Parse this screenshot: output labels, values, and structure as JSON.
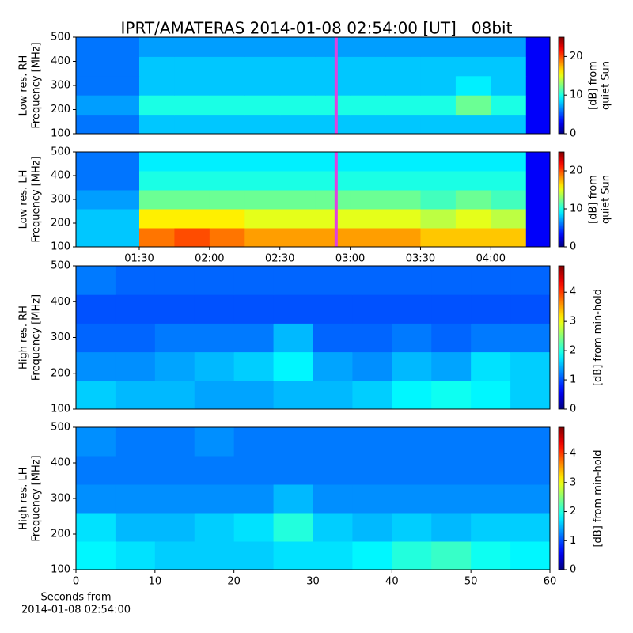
{
  "title": "IPRT/AMATERAS 2014-01-08 02:54:00 [UT]   08bit",
  "chart_data": [
    {
      "type": "heatmap",
      "colormap": "jet",
      "ylabel": [
        "Low res. RH",
        "Frequency [MHz]"
      ],
      "xlim": [
        1.05,
        4.42
      ],
      "ylim": [
        100,
        500
      ],
      "yticks": [
        100,
        200,
        300,
        400,
        500
      ],
      "x_bins": [
        1.05,
        1.5,
        1.75,
        2,
        2.25,
        2.5,
        2.75,
        3,
        3.25,
        3.5,
        3.75,
        4,
        4.25,
        4.42
      ],
      "y_bins": [
        100,
        180,
        260,
        340,
        420,
        500
      ],
      "z": [
        [
          6,
          8,
          8,
          8,
          8,
          8,
          8,
          8,
          8,
          8,
          8,
          8,
          3
        ],
        [
          7,
          10,
          10,
          10,
          10,
          10,
          10,
          10,
          10,
          10,
          12,
          10,
          3
        ],
        [
          6,
          8,
          8,
          8,
          8,
          8,
          8,
          8,
          8,
          8,
          9,
          8,
          3
        ],
        [
          6,
          8,
          8,
          8,
          8,
          8,
          8,
          8,
          8,
          8,
          8,
          8,
          3
        ],
        [
          6,
          7,
          7,
          7,
          7,
          7,
          7,
          7,
          7,
          7,
          7,
          7,
          3
        ]
      ],
      "marker_x": 2.9,
      "marker_color": "#e040e0",
      "colorbar": {
        "label": [
          "[dB] from",
          "quiet Sun"
        ],
        "lim": [
          0,
          25
        ],
        "ticks": [
          0,
          10,
          20
        ]
      }
    },
    {
      "type": "heatmap",
      "colormap": "jet",
      "ylabel": [
        "Low res. LH",
        "Frequency [MHz]"
      ],
      "xlim": [
        1.05,
        4.42
      ],
      "ylim": [
        100,
        500
      ],
      "yticks": [
        100,
        200,
        300,
        400,
        500
      ],
      "xticks": [
        {
          "value": 1.5,
          "label": "01:30"
        },
        {
          "value": 2,
          "label": "02:00"
        },
        {
          "value": 2.5,
          "label": "02:30"
        },
        {
          "value": 3,
          "label": "03:00"
        },
        {
          "value": 3.5,
          "label": "03:30"
        },
        {
          "value": 4,
          "label": "04:00"
        }
      ],
      "x_bins": [
        1.05,
        1.5,
        1.75,
        2,
        2.25,
        2.5,
        2.75,
        3,
        3.25,
        3.5,
        3.75,
        4,
        4.25,
        4.42
      ],
      "y_bins": [
        100,
        180,
        260,
        340,
        420,
        500
      ],
      "z": [
        [
          8,
          19,
          20,
          19,
          18,
          18,
          18,
          18,
          18,
          17,
          17,
          17,
          3
        ],
        [
          8,
          16,
          16,
          16,
          15,
          15,
          15,
          15,
          15,
          14,
          15,
          14,
          3
        ],
        [
          7,
          12,
          12,
          12,
          12,
          12,
          12,
          12,
          12,
          11,
          12,
          11,
          3
        ],
        [
          6,
          10,
          10,
          10,
          10,
          10,
          10,
          10,
          10,
          10,
          10,
          10,
          3
        ],
        [
          6,
          9,
          9,
          9,
          9,
          9,
          9,
          9,
          9,
          9,
          9,
          9,
          3
        ]
      ],
      "marker_x": 2.9,
      "marker_color": "#e040e0",
      "colorbar": {
        "label": [
          "[dB] from",
          "quiet Sun"
        ],
        "lim": [
          0,
          25
        ],
        "ticks": [
          0,
          10,
          20
        ]
      }
    },
    {
      "type": "heatmap",
      "colormap": "jet",
      "ylabel": [
        "High res. RH",
        "Frequency [MHz]"
      ],
      "xlim": [
        0,
        60
      ],
      "ylim": [
        100,
        500
      ],
      "yticks": [
        100,
        200,
        300,
        400,
        500
      ],
      "x_bins": [
        0,
        5,
        10,
        15,
        20,
        25,
        30,
        35,
        40,
        45,
        50,
        55,
        60
      ],
      "y_bins": [
        100,
        180,
        260,
        340,
        420,
        500
      ],
      "z": [
        [
          1.6,
          1.5,
          1.5,
          1.4,
          1.4,
          1.5,
          1.5,
          1.6,
          1.8,
          1.9,
          1.8,
          1.6
        ],
        [
          1.3,
          1.3,
          1.4,
          1.5,
          1.6,
          1.8,
          1.4,
          1.3,
          1.5,
          1.4,
          1.7,
          1.6
        ],
        [
          1.1,
          1.1,
          1.2,
          1.2,
          1.2,
          1.5,
          1.1,
          1.1,
          1.2,
          1.1,
          1.2,
          1.2
        ],
        [
          1.0,
          1.0,
          1.0,
          1.0,
          1.0,
          1.0,
          1.0,
          1.0,
          1.0,
          1.0,
          1.0,
          1.0
        ],
        [
          1.2,
          1.1,
          1.1,
          1.1,
          1.1,
          1.1,
          1.1,
          1.1,
          1.1,
          1.1,
          1.1,
          1.1
        ]
      ],
      "colorbar": {
        "label": [
          "[dB] from min-hold"
        ],
        "lim": [
          0,
          4.9
        ],
        "ticks": [
          0,
          1,
          2,
          3,
          4
        ]
      }
    },
    {
      "type": "heatmap",
      "colormap": "jet",
      "ylabel": [
        "High res. LH",
        "Frequency [MHz]"
      ],
      "xlabel": [
        "Seconds from",
        "2014-01-08 02:54:00"
      ],
      "xlim": [
        0,
        60
      ],
      "ylim": [
        100,
        500
      ],
      "yticks": [
        100,
        200,
        300,
        400,
        500
      ],
      "xticks": [
        0,
        10,
        20,
        30,
        40,
        50,
        60
      ],
      "x_bins": [
        0,
        5,
        10,
        15,
        20,
        25,
        30,
        35,
        40,
        45,
        50,
        55,
        60
      ],
      "y_bins": [
        100,
        180,
        260,
        340,
        420,
        500
      ],
      "z": [
        [
          1.8,
          1.7,
          1.6,
          1.6,
          1.6,
          1.7,
          1.7,
          1.8,
          2.0,
          2.1,
          1.9,
          1.8
        ],
        [
          1.7,
          1.5,
          1.5,
          1.6,
          1.7,
          2.0,
          1.6,
          1.5,
          1.6,
          1.5,
          1.6,
          1.6
        ],
        [
          1.3,
          1.3,
          1.3,
          1.3,
          1.3,
          1.5,
          1.3,
          1.3,
          1.3,
          1.3,
          1.3,
          1.3
        ],
        [
          1.2,
          1.2,
          1.2,
          1.2,
          1.2,
          1.2,
          1.2,
          1.2,
          1.2,
          1.2,
          1.2,
          1.2
        ],
        [
          1.3,
          1.2,
          1.2,
          1.3,
          1.2,
          1.2,
          1.2,
          1.2,
          1.2,
          1.2,
          1.2,
          1.2
        ]
      ],
      "colorbar": {
        "label": [
          "[dB] from min-hold"
        ],
        "lim": [
          0,
          4.9
        ],
        "ticks": [
          0,
          1,
          2,
          3,
          4
        ]
      }
    }
  ]
}
